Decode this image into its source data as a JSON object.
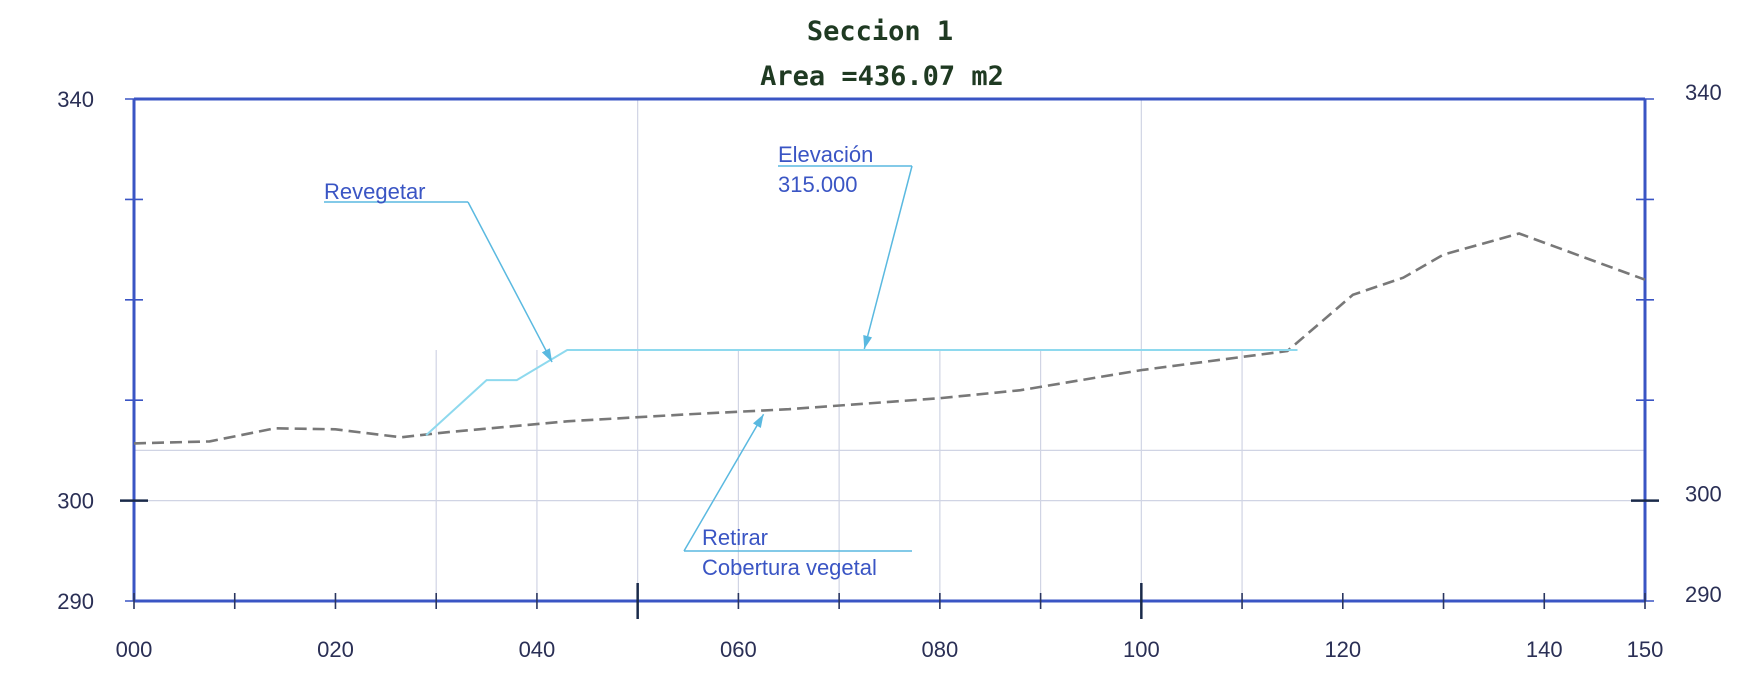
{
  "title": "Seccion 1",
  "area_label": "Area =436.07 m2",
  "colors": {
    "frame": "#3a55c4",
    "grid": "#d0d4e4",
    "ground": "#787878",
    "design": "#8ed9ee",
    "leader": "#5ab9e0",
    "label": "#3a55c4",
    "title": "#1f3a22"
  },
  "chart_data": {
    "type": "line",
    "x_unit": "m",
    "xlim": [
      0,
      150
    ],
    "ylim": [
      290,
      340
    ],
    "x_ticks": [
      "000",
      "020",
      "040",
      "060",
      "080",
      "100",
      "120",
      "140",
      "150"
    ],
    "x_tick_values": [
      0,
      20,
      40,
      60,
      80,
      100,
      120,
      140,
      150
    ],
    "y_ticks_left": [
      "340",
      "300",
      "290"
    ],
    "y_ticks_right": [
      "340",
      "300",
      "290"
    ],
    "y_tick_values": [
      340,
      300,
      290
    ],
    "vertical_grid": [
      30,
      40,
      50,
      60,
      70,
      80,
      90,
      100,
      110
    ],
    "horizontal_grid": [
      300,
      305
    ],
    "series": [
      {
        "style": "dashed",
        "x": [
          0,
          7.5,
          14,
          20,
          26.5,
          31,
          43,
          55,
          65,
          80,
          88,
          100,
          114.5,
          121,
          126,
          130,
          137.5,
          150
        ],
        "y": [
          305.7,
          305.9,
          307.2,
          307.1,
          306.3,
          306.8,
          307.9,
          308.6,
          309.1,
          310.2,
          311.0,
          313.0,
          314.9,
          320.5,
          322.2,
          324.5,
          326.6,
          322.0
        ]
      },
      {
        "style": "solid",
        "x": [
          29,
          35,
          38,
          43,
          115.5
        ],
        "y": [
          306.5,
          312.0,
          312.0,
          315.0,
          315.0
        ]
      }
    ],
    "annotations": [
      {
        "lines": [
          "Revegetar"
        ],
        "target": [
          41.5,
          313.8
        ]
      },
      {
        "lines": [
          "Elevación",
          "315.000"
        ],
        "target": [
          72.5,
          315.1
        ]
      },
      {
        "lines": [
          "Retirar",
          "Cobertura vegetal"
        ],
        "target": [
          62.5,
          308.6
        ]
      }
    ]
  }
}
